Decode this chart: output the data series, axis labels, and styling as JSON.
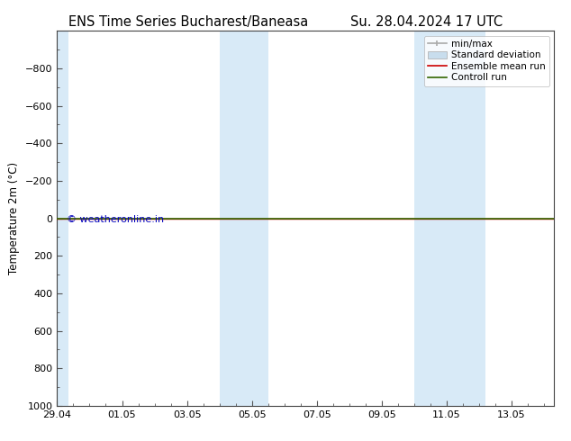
{
  "title_left": "ENS Time Series Bucharest/Baneasa",
  "title_right": "Su. 28.04.2024 17 UTC",
  "ylabel": "Temperature 2m (°C)",
  "ylim": [
    -1000,
    1000
  ],
  "yticks": [
    -800,
    -600,
    -400,
    -200,
    0,
    200,
    400,
    600,
    800,
    1000
  ],
  "xtick_labels": [
    "29.04",
    "01.05",
    "03.05",
    "05.05",
    "07.05",
    "09.05",
    "11.05",
    "13.05"
  ],
  "xtick_positions": [
    0,
    2,
    4,
    6,
    8,
    10,
    12,
    14
  ],
  "xlim": [
    0,
    15.3
  ],
  "band_color": "#d8eaf7",
  "band1_start": 5.0,
  "band1_mid": 5.5,
  "band1_end": 6.5,
  "band2_start": 11.0,
  "band2_mid": 11.5,
  "band2_end": 13.3,
  "band_start_start": 0.0,
  "band_start_end": 0.35,
  "control_run_color": "#336600",
  "ensemble_mean_color": "#cc0000",
  "background_color": "#ffffff",
  "watermark_text": "© weatheronline.in",
  "watermark_color": "#0000bb",
  "legend_labels": [
    "min/max",
    "Standard deviation",
    "Ensemble mean run",
    "Controll run"
  ],
  "legend_color_minmax": "#aaaaaa",
  "legend_color_std": "#c8dded",
  "legend_color_ensemble": "#cc0000",
  "legend_color_control": "#336600",
  "title_fontsize": 10.5,
  "axis_label_fontsize": 8.5,
  "tick_fontsize": 8,
  "legend_fontsize": 7.5
}
